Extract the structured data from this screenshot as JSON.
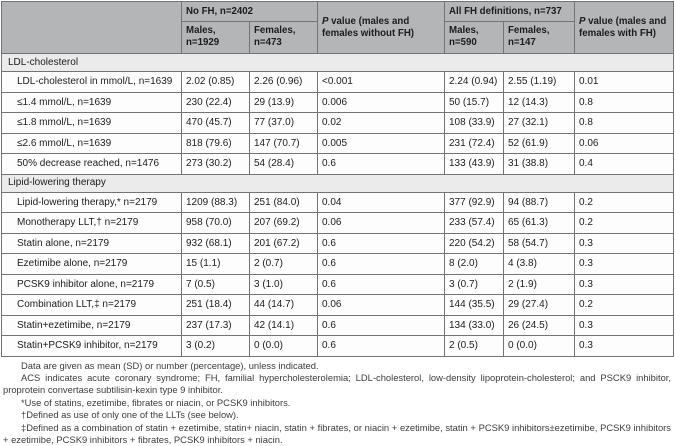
{
  "colors": {
    "header_bg": "#b3b5b7",
    "section_bg": "#ebebeb",
    "row_bg": "#fdfdfd",
    "border": "#737373"
  },
  "table": {
    "header": {
      "no_fh_group": "No FH, n=2402",
      "no_fh_males": "Males,\nn=1929",
      "no_fh_females": "Females,\nn=473",
      "p_no_fh_prefix": "P",
      "p_no_fh_rest": " value (males and females without FH)",
      "fh_group": "All FH definitions, n=737",
      "fh_males": "Males,\nn=590",
      "fh_females": "Females,\nn=147",
      "p_fh_prefix": "P",
      "p_fh_rest": " value (males and females with FH)"
    },
    "rows": [
      {
        "type": "section",
        "label": "LDL-cholesterol"
      },
      {
        "type": "data",
        "label": "LDL-cholesterol in mmol/L, n=1639",
        "values": [
          "2.02 (0.85)",
          "2.26 (0.96)",
          "<0.001",
          "2.24 (0.94)",
          "2.55 (1.19)",
          "0.01"
        ]
      },
      {
        "type": "data",
        "label": "≤1.4 mmol/L, n=1639",
        "values": [
          "230 (22.4)",
          "29 (13.9)",
          "0.006",
          "50 (15.7)",
          "12 (14.3)",
          "0.8"
        ]
      },
      {
        "type": "data",
        "label": "≤1.8 mmol/L, n=1639",
        "values": [
          "470 (45.7)",
          "77 (37.0)",
          "0.02",
          "108 (33.9)",
          "27 (32.1)",
          "0.8"
        ]
      },
      {
        "type": "data",
        "label": "≤2.6 mmol/L, n=1639",
        "values": [
          "818 (79.6)",
          "147 (70.7)",
          "0.005",
          "231 (72.4)",
          "52 (61.9)",
          "0.06"
        ]
      },
      {
        "type": "data",
        "label": "50% decrease reached, n=1476",
        "values": [
          "273 (30.2)",
          "54 (28.4)",
          "0.6",
          "133 (43.9)",
          "31 (38.8)",
          "0.4"
        ]
      },
      {
        "type": "section",
        "label": "Lipid-lowering therapy"
      },
      {
        "type": "data",
        "label": "Lipid-lowering therapy,* n=2179",
        "values": [
          "1209 (88.3)",
          "251 (84.0)",
          "0.04",
          "377 (92.9)",
          "94 (88.7)",
          "0.2"
        ]
      },
      {
        "type": "data",
        "label": "Monotherapy LLT,† n=2179",
        "values": [
          "958 (70.0)",
          "207 (69.2)",
          "0.06",
          "233 (57.4)",
          "65 (61.3)",
          "0.2"
        ]
      },
      {
        "type": "data",
        "label": "Statin alone, n=2179",
        "values": [
          "932 (68.1)",
          "201 (67.2)",
          "0.6",
          "220 (54.2)",
          "58 (54.7)",
          "0.3"
        ]
      },
      {
        "type": "data",
        "label": "Ezetimibe alone, n=2179",
        "values": [
          "15 (1.1)",
          "2 (0.7)",
          "0.6",
          "8 (2.0)",
          "4 (3.8)",
          "0.3"
        ]
      },
      {
        "type": "data",
        "label": "PCSK9 inhibitor alone, n=2179",
        "values": [
          "7 (0.5)",
          "3 (1.0)",
          "0.6",
          "3 (0.7)",
          "2 (1.9)",
          "0.3"
        ]
      },
      {
        "type": "data",
        "label": "Combination LLT,‡ n=2179",
        "values": [
          "251 (18.4)",
          "44 (14.7)",
          "0.06",
          "144 (35.5)",
          "29 (27.4)",
          "0.2"
        ]
      },
      {
        "type": "data",
        "label": "Statin+ezetimibe, n=2179",
        "values": [
          "237 (17.3)",
          "42 (14.1)",
          "0.6",
          "134 (33.0)",
          "26 (24.5)",
          "0.3"
        ]
      },
      {
        "type": "data",
        "label": "Statin+PCSK9 inhibitor, n=2179",
        "values": [
          "3 (0.2)",
          "0 (0.0)",
          "0.6",
          "2 (0.5)",
          "0 (0.0)",
          "0.3"
        ]
      }
    ]
  },
  "footnotes": [
    "Data are given as mean (SD) or number (percentage), unless indicated.",
    "ACS indicates acute coronary syndrome; FH, familial hypercholesterolemia; LDL-cholesterol, low-density lipoprotein-cholesterol; and PSCK9 inhibitor, proprotein convertase subtilisin-kexin type 9 inhibitor.",
    "*Use of statins, ezetimibe, fibrates or niacin, or PCSK9 inhibitors.",
    "†Defined as use of only one of the LLTs (see below).",
    "‡Defined as a combination of statin + ezetimibe, statin+ niacin, statin + fibrates, or niacin + ezetimibe, statin + PCSK9 inhibitors±ezetimibe, PCSK9 inhibitors + ezetimibe, PCSK9 inhibitors + fibrates, PCSK9 inhibitors + niacin."
  ]
}
